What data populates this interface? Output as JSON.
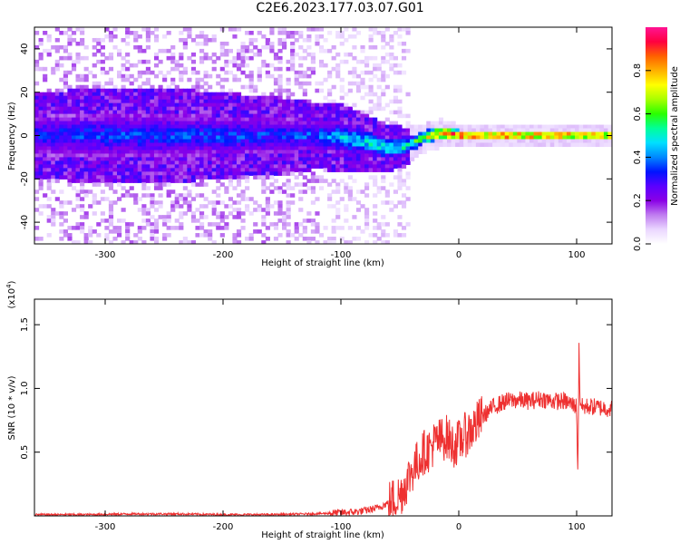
{
  "title": "C2E6.2023.177.03.07.G01",
  "chart_data": [
    {
      "type": "heatmap",
      "xlabel": "Height of straight line (km)",
      "ylabel": "Frequency (Hz)",
      "xlim": [
        -360,
        130
      ],
      "ylim": [
        -50,
        50
      ],
      "xticks": [
        -300,
        -200,
        -100,
        0,
        100
      ],
      "yticks": [
        -40,
        -20,
        0,
        20,
        40
      ],
      "colorbar": {
        "label": "Normalized spectral amplitude",
        "range": [
          0.0,
          1.0
        ],
        "ticks": [
          "0.0",
          "0.2",
          "0.4",
          "0.6",
          "0.8"
        ],
        "colormap": [
          "#ffffff",
          "#ead6ff",
          "#c07df0",
          "#8a00e6",
          "#5a00ff",
          "#0014ff",
          "#0088ff",
          "#00e0ff",
          "#00ff9a",
          "#29ff00",
          "#a8ff00",
          "#ffff00",
          "#ffb000",
          "#ff6000",
          "#ff0040",
          "#ff1493"
        ]
      },
      "trace_center": [
        {
          "x": -360,
          "y": 0.0,
          "amp": 0.35,
          "halfwidth": 9
        },
        {
          "x": -300,
          "y": 0.0,
          "amp": 0.37,
          "halfwidth": 10
        },
        {
          "x": -250,
          "y": 0.0,
          "amp": 0.36,
          "halfwidth": 10
        },
        {
          "x": -200,
          "y": 0.0,
          "amp": 0.38,
          "halfwidth": 9
        },
        {
          "x": -150,
          "y": 0.0,
          "amp": 0.36,
          "halfwidth": 8
        },
        {
          "x": -120,
          "y": 0.0,
          "amp": 0.4,
          "halfwidth": 7
        },
        {
          "x": -100,
          "y": -1.0,
          "amp": 0.45,
          "halfwidth": 7
        },
        {
          "x": -80,
          "y": -3.0,
          "amp": 0.5,
          "halfwidth": 6
        },
        {
          "x": -60,
          "y": -6.0,
          "amp": 0.52,
          "halfwidth": 5
        },
        {
          "x": -45,
          "y": -5.0,
          "amp": 0.55,
          "halfwidth": 4
        },
        {
          "x": -30,
          "y": -1.0,
          "amp": 0.7,
          "halfwidth": 3
        },
        {
          "x": -15,
          "y": 1.0,
          "amp": 0.9,
          "halfwidth": 3
        },
        {
          "x": 0,
          "y": 0.0,
          "amp": 0.95,
          "halfwidth": 2.5
        },
        {
          "x": 50,
          "y": 0.0,
          "amp": 0.93,
          "halfwidth": 2.5
        },
        {
          "x": 90,
          "y": 0.0,
          "amp": 0.92,
          "halfwidth": 2.5
        },
        {
          "x": 130,
          "y": 0.0,
          "amp": 0.85,
          "halfwidth": 2.5
        }
      ]
    },
    {
      "type": "line",
      "xlabel": "Height of straight line (km)",
      "ylabel": "SNR (10 * v/v)",
      "yunit_label": "(x10",
      "yunit_exponent": "4",
      "yunit_close": ")",
      "xlim": [
        -360,
        130
      ],
      "ylim": [
        0,
        1.7
      ],
      "xticks": [
        -300,
        -200,
        -100,
        0,
        100
      ],
      "yticks": [
        0.5,
        1.0,
        1.5
      ],
      "ytick_labels": [
        "0.5",
        "1.0",
        "1.5"
      ],
      "color": "#ee3030",
      "series": [
        {
          "x": [
            -360,
            -320,
            -280,
            -240,
            -200,
            -160,
            -130,
            -110,
            -100,
            -90,
            -80,
            -70,
            -60,
            -50,
            -45,
            -40,
            -35,
            -30,
            -25,
            -20,
            -15,
            -10,
            -5,
            0,
            5,
            10,
            15,
            20,
            30,
            40,
            50,
            60,
            70,
            80,
            90,
            95,
            100,
            101,
            102,
            103,
            105,
            110,
            120,
            130
          ],
          "y": [
            0.01,
            0.01,
            0.015,
            0.015,
            0.01,
            0.01,
            0.015,
            0.02,
            0.025,
            0.03,
            0.04,
            0.06,
            0.1,
            0.16,
            0.25,
            0.35,
            0.42,
            0.5,
            0.52,
            0.58,
            0.6,
            0.62,
            0.55,
            0.58,
            0.63,
            0.67,
            0.72,
            0.78,
            0.86,
            0.9,
            0.91,
            0.9,
            0.92,
            0.9,
            0.9,
            0.88,
            0.86,
            0.3,
            1.3,
            0.9,
            0.85,
            0.86,
            0.85,
            0.84
          ]
        }
      ]
    }
  ]
}
